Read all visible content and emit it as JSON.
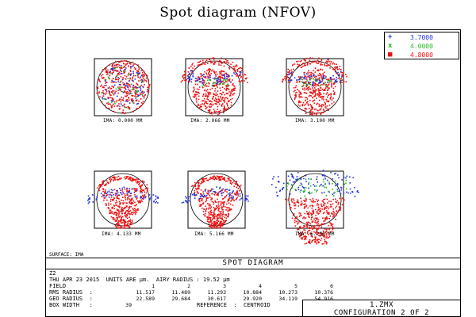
{
  "title": "Spot diagram (NFOV)",
  "legend": [
    {
      "symbol": "+",
      "value": "3.7000",
      "color": "#2233dd"
    },
    {
      "symbol": "x",
      "value": "4.0000",
      "color": "#22bb22"
    },
    {
      "symbol": "■",
      "value": "4.8000",
      "color": "#ee1111"
    }
  ],
  "spots": [
    {
      "label": "IMA: 0.000 MM",
      "pattern": "round"
    },
    {
      "label": "IMA: 2.066 MM",
      "pattern": "drop"
    },
    {
      "label": "IMA: 3.100 MM",
      "pattern": "drop"
    },
    {
      "label": "IMA: 4.133 MM",
      "pattern": "fan"
    },
    {
      "label": "IMA: 5.166 MM",
      "pattern": "fan"
    },
    {
      "label": "IMA: 6.200 MM",
      "pattern": "wide"
    }
  ],
  "surface": "SURFACE: IMA",
  "section_title": "SPOT DIAGRAM",
  "info": {
    "line1": "Z2",
    "line2": "THU APR 23 2015  UNITS ARE µm.  AIRY RADIUS : 19.52 µm",
    "field_label": "FIELD",
    "field_values": [
      "1",
      "2",
      "3",
      "4",
      "5",
      "6"
    ],
    "rms_label": "RMS RADIUS  :",
    "rms_values": [
      "11.517",
      "11.489",
      "11.293",
      "10.884",
      "10.273",
      "10.376"
    ],
    "geo_label": "GEO RADIUS  :",
    "geo_values": [
      "22.589",
      "29.684",
      "30.617",
      "29.920",
      "34.119",
      "54.916"
    ],
    "box_label": "BOX WIDTH   :",
    "box_value": "39",
    "reference": "REFERENCE  :  CENTROID"
  },
  "config": {
    "file": "1.ZMX",
    "configuration": "CONFIGURATION 2 OF 2"
  }
}
